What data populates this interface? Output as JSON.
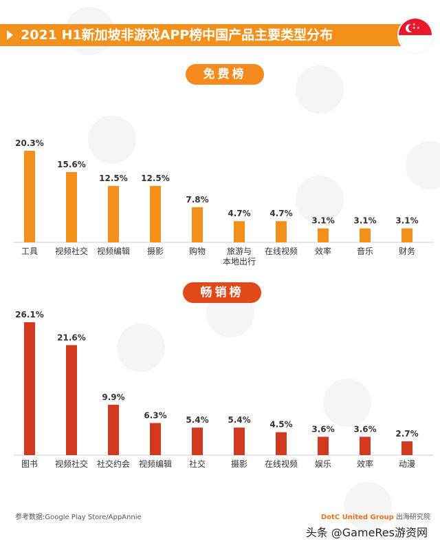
{
  "title": "2021 H1新加坡非游戏APP榜中国产品主要类型分布",
  "free_label": "免费榜",
  "grossing_label": "畅销榜",
  "footer_source": "参考数据:Google Play Store/AppAnnie",
  "footer_brand": "DotC United Group",
  "footer_brand_suffix": "出海研究院",
  "watermark": "头条 @GameRes游资网",
  "colors": {
    "free": "#f39019",
    "grossing": "#d3391f",
    "title_bar": "#f39019"
  },
  "chart_data": [
    {
      "type": "bar",
      "categories": [
        "工具",
        "视频社交",
        "视频编辑",
        "摄影",
        "购物",
        "旅游与本地出行",
        "在线视频",
        "效率",
        "音乐",
        "财务"
      ],
      "category_lines": [
        [
          "工具"
        ],
        [
          "视频社交"
        ],
        [
          "视频编辑"
        ],
        [
          "摄影"
        ],
        [
          "购物"
        ],
        [
          "旅游与",
          "本地出行"
        ],
        [
          "在线视频"
        ],
        [
          "效率"
        ],
        [
          "音乐"
        ],
        [
          "财务"
        ]
      ],
      "values": [
        20.3,
        15.6,
        12.5,
        12.5,
        7.8,
        4.7,
        4.7,
        3.1,
        3.1,
        3.1
      ],
      "labels": [
        "20.3%",
        "15.6%",
        "12.5%",
        "12.5%",
        "7.8%",
        "4.7%",
        "4.7%",
        "3.1%",
        "3.1%",
        "3.1%"
      ],
      "title": "免费榜",
      "ylim": [
        0,
        20.3
      ]
    },
    {
      "type": "bar",
      "categories": [
        "图书",
        "视频社交",
        "社交约会",
        "视频编辑",
        "社交",
        "摄影",
        "在线视频",
        "娱乐",
        "效率",
        "动漫"
      ],
      "category_lines": [
        [
          "图书"
        ],
        [
          "视频社交"
        ],
        [
          "社交约会"
        ],
        [
          "视频编辑"
        ],
        [
          "社交"
        ],
        [
          "摄影"
        ],
        [
          "在线视频"
        ],
        [
          "娱乐"
        ],
        [
          "效率"
        ],
        [
          "动漫"
        ]
      ],
      "values": [
        26.1,
        21.6,
        9.9,
        6.3,
        5.4,
        5.4,
        4.5,
        3.6,
        3.6,
        2.7
      ],
      "labels": [
        "26.1%",
        "21.6%",
        "9.9%",
        "6.3%",
        "5.4%",
        "5.4%",
        "4.5%",
        "3.6%",
        "3.6%",
        "2.7%"
      ],
      "title": "畅销榜",
      "ylim": [
        0,
        26.1
      ]
    }
  ]
}
